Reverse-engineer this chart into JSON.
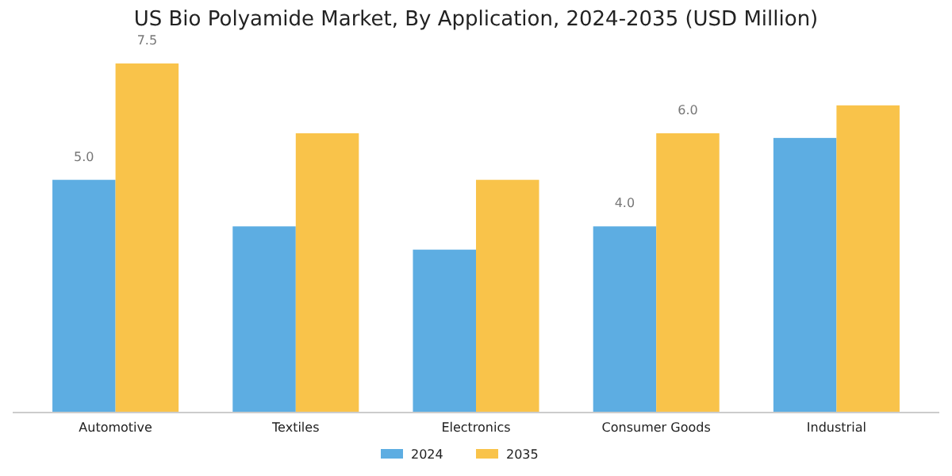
{
  "chart_data": {
    "type": "bar",
    "title": "US Bio Polyamide Market, By Application, 2024-2035 (USD Million)",
    "categories": [
      "Automotive",
      "Textiles",
      "Electronics",
      "Consumer Goods",
      "Industrial"
    ],
    "series": [
      {
        "name": "2024",
        "color": "#5dade2",
        "values": [
          5.0,
          4.0,
          3.5,
          4.0,
          5.9
        ],
        "value_labels": [
          "5.0",
          null,
          null,
          "4.0",
          null
        ]
      },
      {
        "name": "2035",
        "color": "#f9c34a",
        "values": [
          7.5,
          6.0,
          5.0,
          6.0,
          6.6
        ],
        "value_labels": [
          "7.5",
          null,
          null,
          "6.0",
          null
        ]
      }
    ],
    "legend": "bottom"
  }
}
